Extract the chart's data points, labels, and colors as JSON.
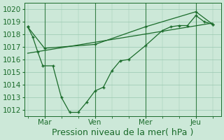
{
  "background_color": "#cce8d8",
  "grid_color": "#99c8b0",
  "line_color": "#1a6b2a",
  "marker_color": "#1a6b2a",
  "x_tick_positions": [
    1,
    4,
    7,
    10
  ],
  "x_tick_labels": [
    "Mar",
    "Ven",
    "Mer",
    "Jeu"
  ],
  "x_vlines": [
    1,
    4,
    7,
    10
  ],
  "ylim": [
    1011.5,
    1020.5
  ],
  "y_ticks": [
    1012,
    1013,
    1014,
    1015,
    1016,
    1017,
    1018,
    1019,
    1020
  ],
  "series1_x": [
    0,
    0.3,
    0.6,
    0.9,
    1.5,
    2.0,
    2.5,
    3.0,
    3.5,
    4.0,
    4.5,
    5.0,
    5.5,
    6.0,
    7.0,
    8.0,
    8.5,
    9.0,
    9.5,
    10.0,
    10.5,
    11.0
  ],
  "series1_y": [
    1018.6,
    1017.8,
    1016.6,
    1015.5,
    1015.5,
    1013.0,
    1011.8,
    1011.8,
    1012.6,
    1013.5,
    1013.8,
    1015.1,
    1015.9,
    1016.0,
    1017.1,
    1018.3,
    1018.6,
    1018.7,
    1018.7,
    1019.5,
    1019.0,
    1018.8
  ],
  "series2_x": [
    0,
    1,
    4,
    7,
    10,
    11
  ],
  "series2_y": [
    1018.6,
    1016.9,
    1017.2,
    1018.6,
    1019.8,
    1018.8
  ],
  "series3_x": [
    0,
    11
  ],
  "series3_y": [
    1016.5,
    1018.9
  ],
  "xlabel": "Pression niveau de la mer( hPa )",
  "xlabel_fontsize": 9,
  "tick_fontsize": 7.5,
  "xlim": [
    -0.2,
    11.5
  ]
}
